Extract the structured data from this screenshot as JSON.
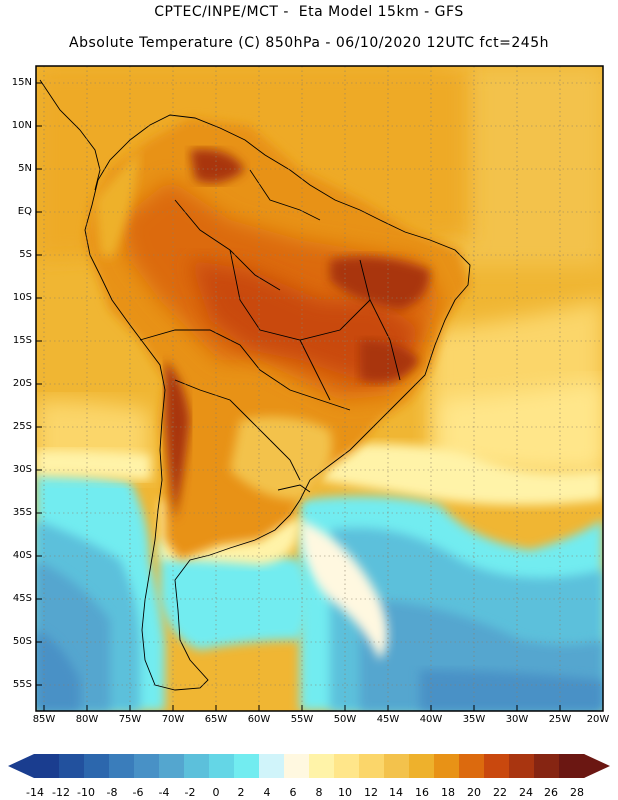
{
  "header": {
    "title_line1": "CPTEC/INPE/MCT -  Eta Model 15km - GFS",
    "title_line2": "Absolute Temperature (C) 850hPa - 06/10/2020 12UTC fct=245h"
  },
  "axes": {
    "latitude_labels": [
      "15N",
      "10N",
      "5N",
      "EQ",
      "5S",
      "10S",
      "15S",
      "20S",
      "25S",
      "30S",
      "35S",
      "40S",
      "45S",
      "50S",
      "55S"
    ],
    "longitude_labels": [
      "85W",
      "80W",
      "75W",
      "70W",
      "65W",
      "60W",
      "55W",
      "50W",
      "45W",
      "40W",
      "35W",
      "30W",
      "25W",
      "20W"
    ]
  },
  "colorbar": {
    "labels": [
      "-14",
      "-12",
      "-10",
      "-8",
      "-6",
      "-4",
      "-2",
      "0",
      "2",
      "4",
      "6",
      "8",
      "10",
      "12",
      "14",
      "16",
      "18",
      "20",
      "22",
      "24",
      "26",
      "28"
    ],
    "colors": [
      "#1a3d8f",
      "#22519e",
      "#2c67ad",
      "#3a7dbb",
      "#4891c6",
      "#54a6cf",
      "#5cc0db",
      "#64d6e6",
      "#72ecf0",
      "#d0f4fa",
      "#fff8e0",
      "#fff3a8",
      "#ffe68a",
      "#fbd66a",
      "#f3c24c",
      "#eeb12c",
      "#e89216",
      "#dc6a0e",
      "#c9480e",
      "#a93510",
      "#862512",
      "#6b1712"
    ]
  }
}
